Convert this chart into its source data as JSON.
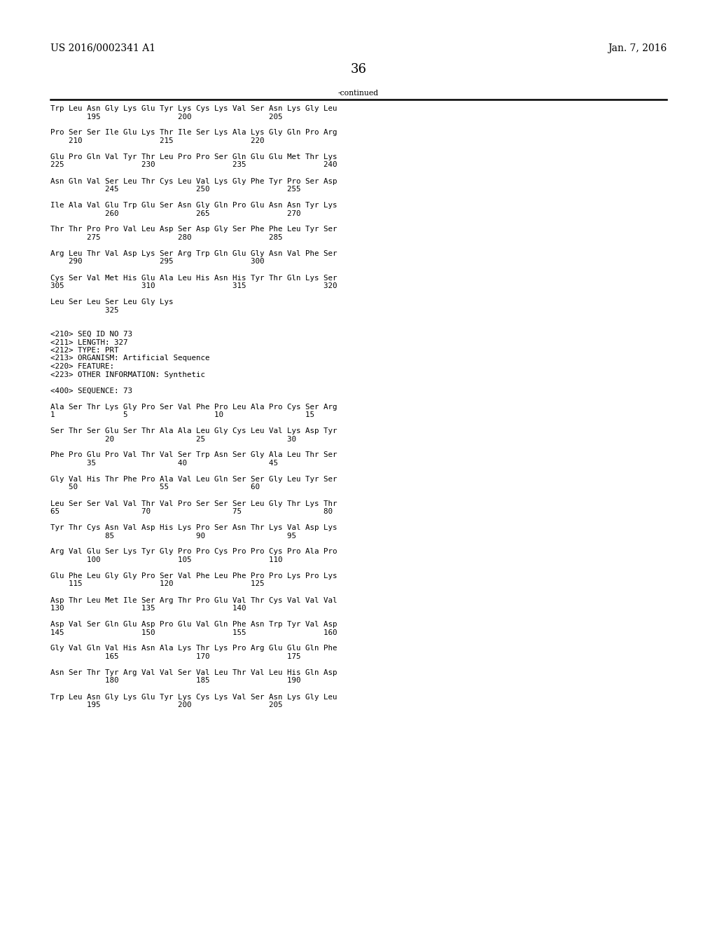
{
  "header_left": "US 2016/0002341 A1",
  "header_right": "Jan. 7, 2016",
  "page_number": "36",
  "continued_label": "-continued",
  "background_color": "#ffffff",
  "text_color": "#000000",
  "body_font_size": 7.8,
  "header_font_size": 10,
  "page_num_font_size": 13,
  "lines": [
    "Trp Leu Asn Gly Lys Glu Tyr Lys Cys Lys Val Ser Asn Lys Gly Leu",
    "        195                 200                 205",
    "",
    "Pro Ser Ser Ile Glu Lys Thr Ile Ser Lys Ala Lys Gly Gln Pro Arg",
    "    210                 215                 220",
    "",
    "Glu Pro Gln Val Tyr Thr Leu Pro Pro Ser Gln Glu Glu Met Thr Lys",
    "225                 230                 235                 240",
    "",
    "Asn Gln Val Ser Leu Thr Cys Leu Val Lys Gly Phe Tyr Pro Ser Asp",
    "            245                 250                 255",
    "",
    "Ile Ala Val Glu Trp Glu Ser Asn Gly Gln Pro Glu Asn Asn Tyr Lys",
    "            260                 265                 270",
    "",
    "Thr Thr Pro Pro Val Leu Asp Ser Asp Gly Ser Phe Phe Leu Tyr Ser",
    "        275                 280                 285",
    "",
    "Arg Leu Thr Val Asp Lys Ser Arg Trp Gln Glu Gly Asn Val Phe Ser",
    "    290                 295                 300",
    "",
    "Cys Ser Val Met His Glu Ala Leu His Asn His Tyr Thr Gln Lys Ser",
    "305                 310                 315                 320",
    "",
    "Leu Ser Leu Ser Leu Gly Lys",
    "            325",
    "",
    "",
    "<210> SEQ ID NO 73",
    "<211> LENGTH: 327",
    "<212> TYPE: PRT",
    "<213> ORGANISM: Artificial Sequence",
    "<220> FEATURE:",
    "<223> OTHER INFORMATION: Synthetic",
    "",
    "<400> SEQUENCE: 73",
    "",
    "Ala Ser Thr Lys Gly Pro Ser Val Phe Pro Leu Ala Pro Cys Ser Arg",
    "1               5                   10                  15",
    "",
    "Ser Thr Ser Glu Ser Thr Ala Ala Leu Gly Cys Leu Val Lys Asp Tyr",
    "            20                  25                  30",
    "",
    "Phe Pro Glu Pro Val Thr Val Ser Trp Asn Ser Gly Ala Leu Thr Ser",
    "        35                  40                  45",
    "",
    "Gly Val His Thr Phe Pro Ala Val Leu Gln Ser Ser Gly Leu Tyr Ser",
    "    50                  55                  60",
    "",
    "Leu Ser Ser Val Val Thr Val Pro Ser Ser Ser Leu Gly Thr Lys Thr",
    "65                  70                  75                  80",
    "",
    "Tyr Thr Cys Asn Val Asp His Lys Pro Ser Asn Thr Lys Val Asp Lys",
    "            85                  90                  95",
    "",
    "Arg Val Glu Ser Lys Tyr Gly Pro Pro Cys Pro Pro Cys Pro Ala Pro",
    "        100                 105                 110",
    "",
    "Glu Phe Leu Gly Gly Pro Ser Val Phe Leu Phe Pro Pro Lys Pro Lys",
    "    115                 120                 125",
    "",
    "Asp Thr Leu Met Ile Ser Arg Thr Pro Glu Val Thr Cys Val Val Val",
    "130                 135                 140",
    "",
    "Asp Val Ser Gln Glu Asp Pro Glu Val Gln Phe Asn Trp Tyr Val Asp",
    "145                 150                 155                 160",
    "",
    "Gly Val Gln Val His Asn Ala Lys Thr Lys Pro Arg Glu Glu Gln Phe",
    "            165                 170                 175",
    "",
    "Asn Ser Thr Tyr Arg Val Val Ser Val Leu Thr Val Leu His Gln Asp",
    "            180                 185                 190",
    "",
    "Trp Leu Asn Gly Lys Glu Tyr Lys Cys Lys Val Ser Asn Lys Gly Leu",
    "        195                 200                 205"
  ]
}
